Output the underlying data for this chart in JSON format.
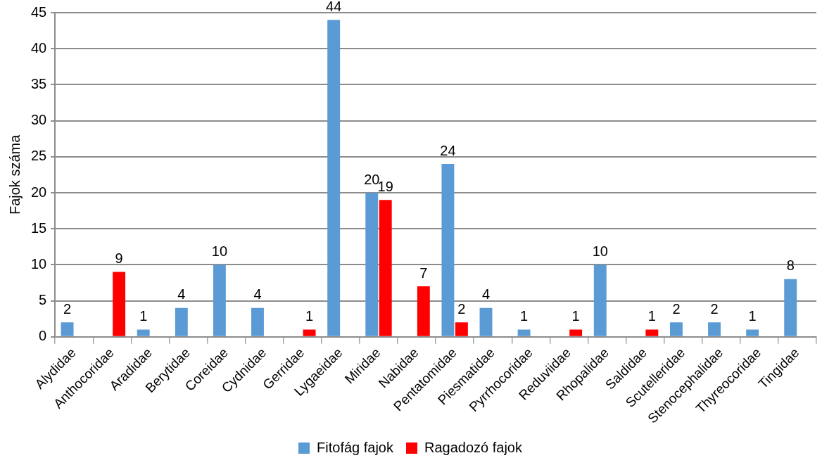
{
  "chart_data": {
    "type": "bar",
    "ylabel": "Fajok száma",
    "categories": [
      "Alydidae",
      "Anthocoridae",
      "Aradidae",
      "Berytidae",
      "Coreidae",
      "Cydnidae",
      "Gerridae",
      "Lygaeidae",
      "Miridae",
      "Nabidae",
      "Pentatomidae",
      "Piesmatidae",
      "Pyrrhocoridae",
      "Reduviidae",
      "Rhopalidae",
      "Saldidae",
      "Scutelleridae",
      "Stenocephalidae",
      "Thyreocoridae",
      "Tingidae"
    ],
    "series": [
      {
        "name": "Fitofág fajok",
        "color": "#5b9bd5",
        "values": [
          2,
          null,
          1,
          4,
          10,
          4,
          null,
          44,
          20,
          null,
          24,
          4,
          1,
          null,
          10,
          null,
          2,
          2,
          1,
          8
        ]
      },
      {
        "name": "Ragadozó fajok",
        "color": "#ff0000",
        "values": [
          null,
          9,
          null,
          null,
          null,
          null,
          1,
          null,
          19,
          7,
          2,
          null,
          null,
          1,
          null,
          1,
          null,
          null,
          null,
          null
        ]
      }
    ],
    "ylim": [
      0,
      45
    ],
    "yticks": [
      0,
      5,
      10,
      15,
      20,
      25,
      30,
      35,
      40,
      45
    ],
    "grid": "y",
    "legend": "bottom",
    "data_labels": true
  }
}
